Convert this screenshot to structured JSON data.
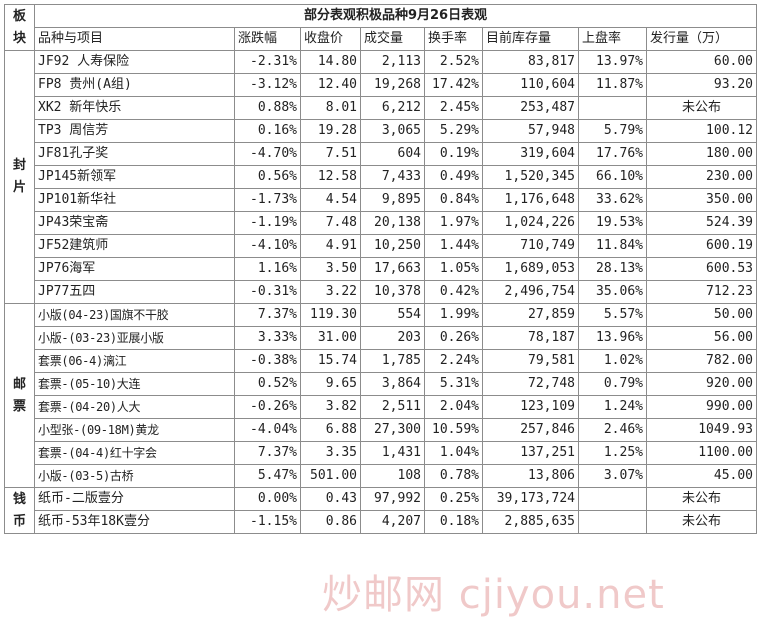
{
  "title": "部分表观积极品种9月26日表观",
  "corner_label": "板块",
  "headers": [
    "品种与项目",
    "涨跌幅",
    "收盘价",
    "成交量",
    "换手率",
    "目前库存量",
    "上盘率",
    "发行量（万）"
  ],
  "groups": [
    {
      "label": "封片",
      "small_font": false,
      "rows": [
        {
          "name": "JF92 人寿保险",
          "change": "-2.31%",
          "trend": "down",
          "close": "14.80",
          "volume": "2,113",
          "turnover": "2.52%",
          "stock": "83,817",
          "rate": "13.97%",
          "issue": "60.00"
        },
        {
          "name": "FP8 贵州(A组)",
          "change": "-3.12%",
          "trend": "down",
          "close": "12.40",
          "volume": "19,268",
          "turnover": "17.42%",
          "stock": "110,604",
          "rate": "11.87%",
          "issue": "93.20"
        },
        {
          "name": "XK2 新年快乐",
          "change": "0.88%",
          "trend": "up",
          "close": "8.01",
          "volume": "6,212",
          "turnover": "2.45%",
          "stock": "253,487",
          "rate": "",
          "issue": "未公布"
        },
        {
          "name": "TP3 周信芳",
          "change": "0.16%",
          "trend": "up",
          "close": "19.28",
          "volume": "3,065",
          "turnover": "5.29%",
          "stock": "57,948",
          "rate": "5.79%",
          "issue": "100.12"
        },
        {
          "name": "JF81孔子奖",
          "change": "-4.70%",
          "trend": "down",
          "close": "7.51",
          "volume": "604",
          "turnover": "0.19%",
          "stock": "319,604",
          "rate": "17.76%",
          "issue": "180.00"
        },
        {
          "name": "JP145新领军",
          "change": "0.56%",
          "trend": "up",
          "close": "12.58",
          "volume": "7,433",
          "turnover": "0.49%",
          "stock": "1,520,345",
          "rate": "66.10%",
          "issue": "230.00"
        },
        {
          "name": "JP101新华社",
          "change": "-1.73%",
          "trend": "down",
          "close": "4.54",
          "volume": "9,895",
          "turnover": "0.84%",
          "stock": "1,176,648",
          "rate": "33.62%",
          "issue": "350.00"
        },
        {
          "name": "JP43荣宝斋",
          "change": "-1.19%",
          "trend": "down",
          "close": "7.48",
          "volume": "20,138",
          "turnover": "1.97%",
          "stock": "1,024,226",
          "rate": "19.53%",
          "issue": "524.39"
        },
        {
          "name": "JF52建筑师",
          "change": "-4.10%",
          "trend": "down",
          "close": "4.91",
          "volume": "10,250",
          "turnover": "1.44%",
          "stock": "710,749",
          "rate": "11.84%",
          "issue": "600.19"
        },
        {
          "name": "JP76海军",
          "change": "1.16%",
          "trend": "up",
          "close": "3.50",
          "volume": "17,663",
          "turnover": "1.05%",
          "stock": "1,689,053",
          "rate": "28.13%",
          "issue": "600.53"
        },
        {
          "name": "JP77五四",
          "change": "-0.31%",
          "trend": "down",
          "close": "3.22",
          "volume": "10,378",
          "turnover": "0.42%",
          "stock": "2,496,754",
          "rate": "35.06%",
          "issue": "712.23"
        }
      ]
    },
    {
      "label": "邮票",
      "small_font": true,
      "rows": [
        {
          "name": "小版(04-23)国旗不干胶",
          "change": "7.37%",
          "trend": "up",
          "close": "119.30",
          "volume": "554",
          "turnover": "1.99%",
          "stock": "27,859",
          "rate": "5.57%",
          "issue": "50.00"
        },
        {
          "name": "小版-(03-23)亚展小版",
          "change": "3.33%",
          "trend": "up",
          "close": "31.00",
          "volume": "203",
          "turnover": "0.26%",
          "stock": "78,187",
          "rate": "13.96%",
          "issue": "56.00"
        },
        {
          "name": "套票(06-4)漓江",
          "change": "-0.38%",
          "trend": "down",
          "close": "15.74",
          "volume": "1,785",
          "turnover": "2.24%",
          "stock": "79,581",
          "rate": "1.02%",
          "issue": "782.00"
        },
        {
          "name": "套票-(05-10)大连",
          "change": "0.52%",
          "trend": "up",
          "close": "9.65",
          "volume": "3,864",
          "turnover": "5.31%",
          "stock": "72,748",
          "rate": "0.79%",
          "issue": "920.00"
        },
        {
          "name": "套票-(04-20)人大",
          "change": "-0.26%",
          "trend": "down",
          "close": "3.82",
          "volume": "2,511",
          "turnover": "2.04%",
          "stock": "123,109",
          "rate": "1.24%",
          "issue": "990.00"
        },
        {
          "name": "小型张-(09-18M)黄龙",
          "change": "-4.04%",
          "trend": "down",
          "close": "6.88",
          "volume": "27,300",
          "turnover": "10.59%",
          "stock": "257,846",
          "rate": "2.46%",
          "issue": "1049.93"
        },
        {
          "name": "套票-(04-4)红十字会",
          "change": "7.37%",
          "trend": "up",
          "close": "3.35",
          "volume": "1,431",
          "turnover": "1.04%",
          "stock": "137,251",
          "rate": "1.25%",
          "issue": "1100.00"
        },
        {
          "name": "小版-(03-5)古桥",
          "change": "5.47%",
          "trend": "up",
          "close": "501.00",
          "volume": "108",
          "turnover": "0.78%",
          "stock": "13,806",
          "rate": "3.07%",
          "issue": "45.00"
        }
      ]
    },
    {
      "label": "钱币",
      "small_font": false,
      "rows": [
        {
          "name": "纸币-二版壹分",
          "change": "0.00%",
          "trend": "flat",
          "close": "0.43",
          "volume": "97,992",
          "turnover": "0.25%",
          "stock": "39,173,724",
          "rate": "",
          "issue": "未公布"
        },
        {
          "name": "纸币-53年18K壹分",
          "change": "-1.15%",
          "trend": "down",
          "close": "0.86",
          "volume": "4,207",
          "turnover": "0.18%",
          "stock": "2,885,635",
          "rate": "",
          "issue": "未公布"
        }
      ]
    }
  ],
  "watermark": "炒邮网 cjiyou.net"
}
